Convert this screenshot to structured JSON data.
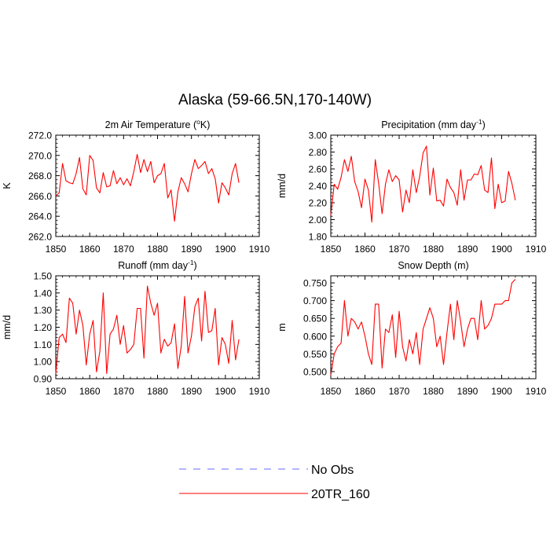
{
  "title": "Alaska (59-66.5N,170-140W)",
  "legend": [
    {
      "label": "No Obs",
      "color": "#6a6aff",
      "style": "dashed"
    },
    {
      "label": "20TR_160",
      "color": "#ff0000",
      "style": "solid"
    }
  ],
  "chart_data": [
    {
      "type": "line",
      "title": "2m Air Temperature (°K)",
      "title_main": "2m Air Temperature (",
      "title_sup": "o",
      "title_tail": "K)",
      "xlabel": "",
      "ylabel": "K",
      "xlim": [
        1850,
        1910
      ],
      "ylim": [
        262,
        272
      ],
      "xticks": [
        1850,
        1860,
        1870,
        1880,
        1890,
        1900,
        1910
      ],
      "yticks": [
        262,
        264,
        266,
        268,
        270,
        272
      ],
      "ytick_labels": [
        "262.0",
        "264.0",
        "266.0",
        "268.0",
        "270.0",
        "272.0"
      ],
      "series": [
        {
          "name": "20TR_160",
          "color": "#ff0000",
          "x": [
            1850,
            1851,
            1852,
            1853,
            1854,
            1855,
            1856,
            1857,
            1858,
            1859,
            1860,
            1861,
            1862,
            1863,
            1864,
            1865,
            1866,
            1867,
            1868,
            1869,
            1870,
            1871,
            1872,
            1873,
            1874,
            1875,
            1876,
            1877,
            1878,
            1879,
            1880,
            1881,
            1882,
            1883,
            1884,
            1885,
            1886,
            1887,
            1888,
            1889,
            1890,
            1891,
            1892,
            1893,
            1894,
            1895,
            1896,
            1897,
            1898,
            1899,
            1900,
            1901,
            1902,
            1903,
            1904
          ],
          "y": [
            266.0,
            266.3,
            269.2,
            267.5,
            267.3,
            267.2,
            268.2,
            269.8,
            266.7,
            266.1,
            270.0,
            269.5,
            266.8,
            266.3,
            268.3,
            266.9,
            267.0,
            268.5,
            267.2,
            267.8,
            267.1,
            267.7,
            267.0,
            268.4,
            270.1,
            268.3,
            269.6,
            268.4,
            269.4,
            267.3,
            268.0,
            268.2,
            269.2,
            265.8,
            266.6,
            263.5,
            266.4,
            267.8,
            267.2,
            266.4,
            268.2,
            269.6,
            268.7,
            269.0,
            269.4,
            268.2,
            268.7,
            267.7,
            265.3,
            267.3,
            266.8,
            266.1,
            268.2,
            269.2,
            267.3
          ]
        }
      ]
    },
    {
      "type": "line",
      "title": "Precipitation (mm day-1)",
      "title_main": "Precipitation (mm day",
      "title_sup": "-1",
      "title_tail": ")",
      "xlabel": "",
      "ylabel": "mm/d",
      "xlim": [
        1850,
        1910
      ],
      "ylim": [
        1.8,
        3.0
      ],
      "xticks": [
        1850,
        1860,
        1870,
        1880,
        1890,
        1900,
        1910
      ],
      "yticks": [
        1.8,
        2.0,
        2.2,
        2.4,
        2.6,
        2.8,
        3.0
      ],
      "ytick_labels": [
        "1.80",
        "2.00",
        "2.20",
        "2.40",
        "2.60",
        "2.80",
        "3.00"
      ],
      "series": [
        {
          "name": "20TR_160",
          "color": "#ff0000",
          "x": [
            1850,
            1851,
            1852,
            1853,
            1854,
            1855,
            1856,
            1857,
            1858,
            1859,
            1860,
            1861,
            1862,
            1863,
            1864,
            1865,
            1866,
            1867,
            1868,
            1869,
            1870,
            1871,
            1872,
            1873,
            1874,
            1875,
            1876,
            1877,
            1878,
            1879,
            1880,
            1881,
            1882,
            1883,
            1884,
            1885,
            1886,
            1887,
            1888,
            1889,
            1890,
            1891,
            1892,
            1893,
            1894,
            1895,
            1896,
            1897,
            1898,
            1899,
            1900,
            1901,
            1902,
            1903,
            1904
          ],
          "y": [
            2.05,
            2.42,
            2.36,
            2.5,
            2.71,
            2.57,
            2.75,
            2.45,
            2.33,
            2.14,
            2.48,
            2.35,
            1.97,
            2.71,
            2.43,
            2.07,
            2.42,
            2.59,
            2.45,
            2.52,
            2.47,
            2.09,
            2.35,
            2.2,
            2.59,
            2.32,
            2.51,
            2.79,
            2.87,
            2.29,
            2.61,
            2.22,
            2.23,
            2.16,
            2.48,
            2.38,
            2.32,
            2.17,
            2.59,
            2.23,
            2.47,
            2.47,
            2.54,
            2.53,
            2.64,
            2.35,
            2.32,
            2.73,
            2.13,
            2.42,
            2.2,
            2.22,
            2.57,
            2.43,
            2.23
          ]
        }
      ]
    },
    {
      "type": "line",
      "title": "Runoff (mm day-1)",
      "title_main": "Runoff (mm day",
      "title_sup": "-1",
      "title_tail": ")",
      "xlabel": "",
      "ylabel": "mm/d",
      "xlim": [
        1850,
        1910
      ],
      "ylim": [
        0.9,
        1.5
      ],
      "xticks": [
        1850,
        1860,
        1870,
        1880,
        1890,
        1900,
        1910
      ],
      "yticks": [
        0.9,
        1.0,
        1.1,
        1.2,
        1.3,
        1.4,
        1.5
      ],
      "ytick_labels": [
        "0.90",
        "1.00",
        "1.10",
        "1.20",
        "1.30",
        "1.40",
        "1.50"
      ],
      "series": [
        {
          "name": "20TR_160",
          "color": "#ff0000",
          "x": [
            1850,
            1851,
            1852,
            1853,
            1854,
            1855,
            1856,
            1857,
            1858,
            1859,
            1860,
            1861,
            1862,
            1863,
            1864,
            1865,
            1866,
            1867,
            1868,
            1869,
            1870,
            1871,
            1872,
            1873,
            1874,
            1875,
            1876,
            1877,
            1878,
            1879,
            1880,
            1881,
            1882,
            1883,
            1884,
            1885,
            1886,
            1887,
            1888,
            1889,
            1890,
            1891,
            1892,
            1893,
            1894,
            1895,
            1896,
            1897,
            1898,
            1899,
            1900,
            1901,
            1902,
            1903,
            1904
          ],
          "y": [
            0.93,
            1.14,
            1.16,
            1.11,
            1.37,
            1.34,
            1.16,
            1.3,
            1.21,
            0.98,
            1.16,
            1.24,
            0.94,
            1.06,
            1.4,
            0.93,
            1.16,
            1.19,
            1.27,
            1.1,
            1.21,
            1.05,
            1.07,
            1.1,
            1.31,
            1.31,
            1.02,
            1.44,
            1.34,
            1.27,
            1.34,
            1.05,
            1.13,
            1.09,
            1.11,
            1.22,
            0.96,
            1.09,
            1.38,
            1.05,
            1.15,
            1.32,
            1.37,
            1.12,
            1.41,
            1.17,
            1.18,
            1.31,
            0.98,
            1.14,
            1.1,
            0.99,
            1.24,
            1.01,
            1.13
          ]
        }
      ]
    },
    {
      "type": "line",
      "title": "Snow Depth (m)",
      "title_main": "Snow Depth (m)",
      "title_sup": "",
      "title_tail": "",
      "xlabel": "",
      "ylabel": "m",
      "xlim": [
        1850,
        1910
      ],
      "ylim": [
        0.48,
        0.77
      ],
      "xticks": [
        1850,
        1860,
        1870,
        1880,
        1890,
        1900,
        1910
      ],
      "yticks": [
        0.5,
        0.55,
        0.6,
        0.65,
        0.7,
        0.75
      ],
      "ytick_labels": [
        "0.500",
        "0.550",
        "0.600",
        "0.650",
        "0.700",
        "0.750"
      ],
      "series": [
        {
          "name": "20TR_160",
          "color": "#ff0000",
          "x": [
            1850,
            1851,
            1852,
            1853,
            1854,
            1855,
            1856,
            1857,
            1858,
            1859,
            1860,
            1861,
            1862,
            1863,
            1864,
            1865,
            1866,
            1867,
            1868,
            1869,
            1870,
            1871,
            1872,
            1873,
            1874,
            1875,
            1876,
            1877,
            1878,
            1879,
            1880,
            1881,
            1882,
            1883,
            1884,
            1885,
            1886,
            1887,
            1888,
            1889,
            1890,
            1891,
            1892,
            1893,
            1894,
            1895,
            1896,
            1897,
            1898,
            1899,
            1900,
            1901,
            1902,
            1903,
            1904
          ],
          "y": [
            0.49,
            0.55,
            0.57,
            0.58,
            0.7,
            0.6,
            0.65,
            0.64,
            0.62,
            0.64,
            0.6,
            0.55,
            0.52,
            0.69,
            0.69,
            0.51,
            0.62,
            0.61,
            0.66,
            0.54,
            0.67,
            0.57,
            0.53,
            0.59,
            0.55,
            0.61,
            0.52,
            0.62,
            0.65,
            0.68,
            0.65,
            0.57,
            0.6,
            0.52,
            0.61,
            0.69,
            0.59,
            0.7,
            0.64,
            0.57,
            0.62,
            0.65,
            0.65,
            0.59,
            0.7,
            0.62,
            0.63,
            0.65,
            0.69,
            0.69,
            0.69,
            0.7,
            0.7,
            0.75,
            0.76
          ]
        }
      ]
    }
  ]
}
